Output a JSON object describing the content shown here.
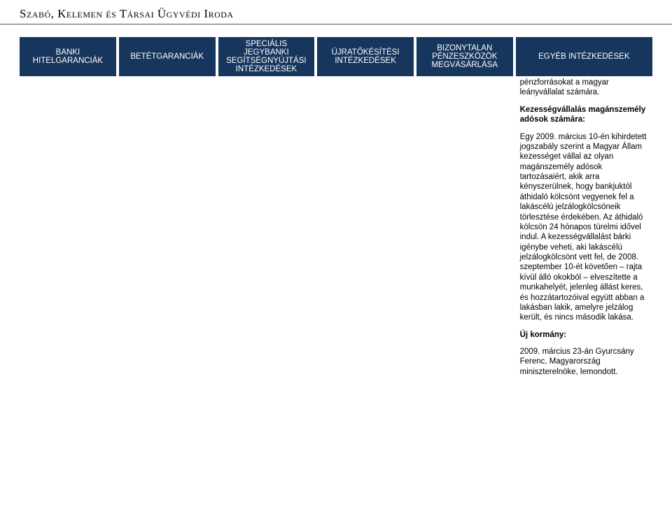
{
  "header": {
    "firm_name": "Szabó, Kelemen és Társai Ügyvédi Iroda"
  },
  "table": {
    "columns": [
      "BANKI HITELGARANCIÁK",
      "BETÉTGARANCIÁK",
      "SPECIÁLIS JEGYBANKI SEGÍTSÉGNYÚJTÁSI INTÉZKEDÉSEK",
      "ÚJRATŐKÉSÍTÉSI INTÉZKEDÉSEK",
      "BIZONYTALAN PÉNZESZKÖZÖK MEGVÁSÁRLÁSA",
      "EGYÉB INTÉZKEDÉSEK"
    ],
    "last_col": {
      "para1": "pénzforrásokat a magyar leányvállalat számára.",
      "heading1": "Kezességvállalás magánszemély adósok számára:",
      "para2": "Egy 2009. március 10-én kihirdetett jogszabály szerint a Magyar Állam kezességet vállal az olyan magánszemély adósok tartozásaiért, akik arra kényszerülnek, hogy bankjuktól áthidaló kölcsönt vegyenek fel a lakáscélú jelzálogkölcsöneik törlesztése érdekében. Az áthidaló kölcsön 24 hónapos türelmi idővel indul. A kezességvállalást bárki igénybe veheti, aki lakáscélú jelzálogkölcsönt vett fel, de 2008. szeptember 10-ét követően – rajta kívül álló okokból – elveszítette a munkahelyét, jelenleg állást keres, és hozzátartozóival együtt abban a lakásban lakik, amelyre jelzálog került, és nincs második lakása.",
      "heading2": "Új kormány:",
      "para3": "2009. március 23-án Gyurcsány Ferenc, Magyarország miniszterelnöke, lemondott."
    }
  },
  "colors": {
    "header_bg": "#17365d",
    "header_text": "#ffffff",
    "body_text": "#000000",
    "rule": "#555555",
    "background": "#ffffff"
  }
}
